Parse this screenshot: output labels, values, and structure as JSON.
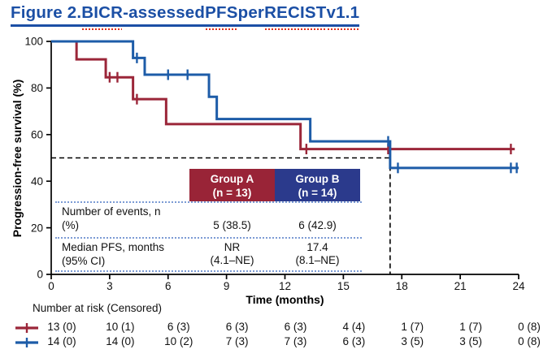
{
  "title": {
    "full": "Figure 2. BICR-assessed PFS per RECIST v1.1",
    "color": "#1b4fa5",
    "segments": [
      {
        "text": "Figure 2. ",
        "misspelled": false
      },
      {
        "text": "BICR",
        "misspelled": true
      },
      {
        "text": "-assessed ",
        "misspelled": false
      },
      {
        "text": "PFS",
        "misspelled": true
      },
      {
        "text": " per ",
        "misspelled": false
      },
      {
        "text": "RECIST",
        "misspelled": true
      },
      {
        "text": " ",
        "misspelled": false
      },
      {
        "text": "v1.1",
        "misspelled": true
      }
    ]
  },
  "chart_data": {
    "type": "line",
    "subtype": "kaplan-meier-step",
    "title": "Figure 2. BICR-assessed PFS per RECIST v1.1",
    "xlabel": "Time (months)",
    "ylabel": "Progression-free survival (%)",
    "xlim": [
      0,
      24
    ],
    "ylim": [
      0,
      100
    ],
    "xticks": [
      0,
      3,
      6,
      9,
      12,
      15,
      18,
      21,
      24
    ],
    "yticks": [
      0,
      20,
      40,
      60,
      80,
      100
    ],
    "grid": false,
    "median_reference_lines": {
      "x": 17.4,
      "y": 50,
      "style": "dashed-black"
    },
    "series": [
      {
        "name": "Group A",
        "n": 13,
        "color": "#9b2639",
        "start": [
          0,
          100
        ],
        "drops": [
          [
            1.3,
            92.3
          ],
          [
            2.8,
            84.6
          ],
          [
            4.2,
            75.2
          ],
          [
            5.9,
            64.5
          ],
          [
            12.8,
            53.8
          ]
        ],
        "end_time": 23.8,
        "censors": [
          [
            3.0,
            84.6
          ],
          [
            3.4,
            84.6
          ],
          [
            4.4,
            75.2
          ],
          [
            13.1,
            53.8
          ],
          [
            17.3,
            53.8
          ],
          [
            23.6,
            53.8
          ]
        ]
      },
      {
        "name": "Group B",
        "n": 14,
        "color": "#1d5ca8",
        "start": [
          0,
          100
        ],
        "drops": [
          [
            4.2,
            92.9
          ],
          [
            4.8,
            85.7
          ],
          [
            8.1,
            76.2
          ],
          [
            8.5,
            66.7
          ],
          [
            13.3,
            57.1
          ],
          [
            17.4,
            45.7
          ]
        ],
        "end_time": 24.0,
        "censors": [
          [
            4.4,
            92.9
          ],
          [
            6.0,
            85.7
          ],
          [
            7.0,
            85.7
          ],
          [
            17.3,
            57.1
          ],
          [
            17.8,
            45.7
          ],
          [
            23.6,
            45.7
          ],
          [
            23.9,
            45.7
          ]
        ]
      }
    ]
  },
  "summary_table": {
    "columns": [
      {
        "line1": "Group A",
        "line2": "(n = 13)",
        "bg": "#992437"
      },
      {
        "line1": "Group B",
        "line2": "(n = 14)",
        "bg": "#2b3a8c"
      }
    ],
    "rows": [
      {
        "label_line1": "Number of events, n",
        "label_line2": "(%)",
        "group_a": "5 (38.5)",
        "group_b": "6 (42.9)"
      },
      {
        "label_line1": "Median PFS, months",
        "label_line2": "(95% CI)",
        "group_a_line1": "NR",
        "group_a_line2": "(4.1–NE)",
        "group_b_line1": "17.4",
        "group_b_line2": "(8.1–NE)"
      }
    ]
  },
  "risk_table": {
    "label": "Number at risk (Censored)",
    "time_points": [
      0,
      3,
      6,
      9,
      12,
      15,
      18,
      21,
      24
    ],
    "rows": [
      {
        "group": "Group A",
        "color": "#9b2639",
        "values": [
          "13 (0)",
          "10 (1)",
          "6 (3)",
          "6 (3)",
          "6 (3)",
          "4 (4)",
          "1 (7)",
          "1 (7)",
          "0 (8)"
        ]
      },
      {
        "group": "Group B",
        "color": "#1d5ca8",
        "values": [
          "14 (0)",
          "14 (0)",
          "10 (2)",
          "7 (3)",
          "7 (3)",
          "6 (3)",
          "3 (5)",
          "3 (5)",
          "0 (8)"
        ]
      }
    ]
  }
}
